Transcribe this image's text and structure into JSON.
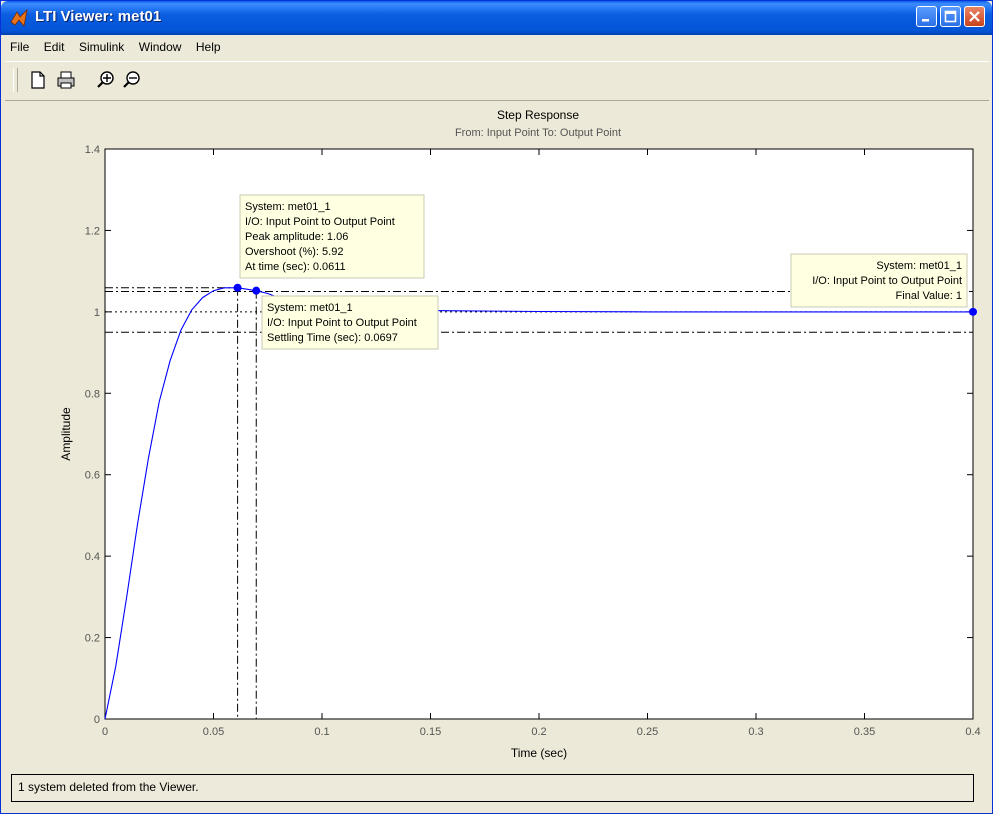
{
  "window": {
    "title": "LTI Viewer: met01"
  },
  "menu": [
    "File",
    "Edit",
    "Simulink",
    "Window",
    "Help"
  ],
  "toolbar": {
    "icons": [
      "new-icon",
      "print-icon",
      "zoom-in-icon",
      "zoom-out-icon"
    ]
  },
  "chart_data": {
    "type": "line",
    "title": "Step Response",
    "subtitle": "From: Input Point  To: Output Point",
    "xlabel": "Time (sec)",
    "ylabel": "Amplitude",
    "xlim": [
      0,
      0.4
    ],
    "ylim": [
      0,
      1.4
    ],
    "x_ticks": [
      "0",
      "0.05",
      "0.1",
      "0.15",
      "0.2",
      "0.25",
      "0.3",
      "0.35",
      "0.4"
    ],
    "y_ticks": [
      "0",
      "0.2",
      "0.4",
      "0.6",
      "0.8",
      "1",
      "1.2",
      "1.4"
    ],
    "grid": false,
    "series": [
      {
        "color": "#0000ff",
        "x": [
          0,
          0.005,
          0.01,
          0.015,
          0.02,
          0.025,
          0.03,
          0.035,
          0.04,
          0.045,
          0.05,
          0.055,
          0.0611,
          0.065,
          0.0697,
          0.075,
          0.08,
          0.09,
          0.1,
          0.12,
          0.15,
          0.2,
          0.25,
          0.3,
          0.35,
          0.4
        ],
        "y": [
          0,
          0.13,
          0.3,
          0.48,
          0.64,
          0.78,
          0.88,
          0.955,
          1.005,
          1.035,
          1.052,
          1.059,
          1.0592,
          1.056,
          1.052,
          1.045,
          1.035,
          1.02,
          1.012,
          1.006,
          1.003,
          1.001,
          1.0,
          1.0,
          1.0,
          1.0
        ]
      }
    ],
    "reference_lines": {
      "final_value": 1.0,
      "settling_band": [
        0.95,
        1.05
      ],
      "peak_amplitude": 1.0592
    },
    "markers": [
      {
        "x": 0.0611,
        "y": 1.0592
      },
      {
        "x": 0.0697,
        "y": 1.052
      },
      {
        "x": 0.4,
        "y": 1.0
      }
    ],
    "annotations": {
      "peak": {
        "lines": [
          "System: met01_1",
          "I/O: Input Point to Output Point",
          "Peak amplitude: 1.06",
          "Overshoot (%): 5.92",
          "At time (sec): 0.0611"
        ]
      },
      "settling": {
        "lines": [
          "System: met01_1",
          "I/O: Input Point to Output Point",
          "Settling Time (sec): 0.0697"
        ]
      },
      "final": {
        "lines": [
          "System: met01_1",
          "I/O: Input Point to Output Point",
          "Final Value: 1"
        ]
      }
    }
  },
  "status": {
    "text": "1 system deleted from the Viewer."
  }
}
